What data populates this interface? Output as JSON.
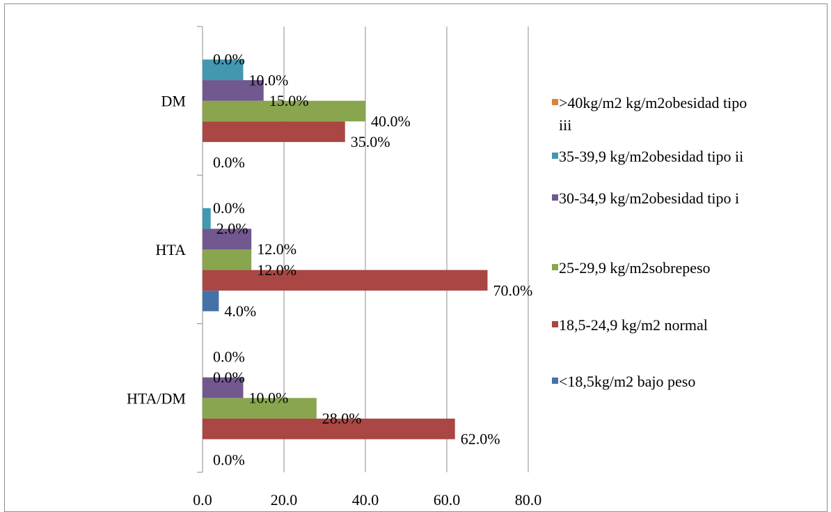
{
  "chart_data": {
    "type": "bar",
    "orientation": "horizontal",
    "categories": [
      "DM",
      "HTA",
      "HTA/DM"
    ],
    "series": [
      {
        "name": "<18,5kg/m2 bajo peso",
        "color": "#4472A8",
        "values": [
          0.0,
          4.0,
          0.0
        ],
        "labels": [
          "0.0%",
          "4.0%",
          "0.0%"
        ]
      },
      {
        "name": "18,5-24,9 kg/m2 normal",
        "color": "#AA4643",
        "values": [
          35.0,
          70.0,
          62.0
        ],
        "labels": [
          "35.0%",
          "70.0%",
          "62.0%"
        ]
      },
      {
        "name": "25-29,9 kg/m2sobrepeso",
        "color": "#89A54E",
        "values": [
          40.0,
          12.0,
          28.0
        ],
        "labels": [
          "40.0%",
          "12.0%",
          "28.0%"
        ]
      },
      {
        "name": "30-34,9 kg/m2obesidad tipo i",
        "color": "#71588F",
        "values": [
          15.0,
          12.0,
          10.0
        ],
        "labels": [
          "15.0%",
          "12.0%",
          "10.0%"
        ]
      },
      {
        "name": "35-39,9 kg/m2obesidad tipo ii",
        "color": "#4198AF",
        "values": [
          10.0,
          2.0,
          0.0
        ],
        "labels": [
          "10.0%",
          "2.0%",
          "0.0%"
        ]
      },
      {
        "name": ">40kg/m2 kg/m2obesidad tipo iii",
        "color": "#DB843D",
        "values": [
          0.0,
          0.0,
          0.0
        ],
        "labels": [
          "0.0%",
          "0.0%",
          "0.0%"
        ]
      }
    ],
    "xlim": [
      0,
      80
    ],
    "x_ticks": [
      "0.0",
      "20.0",
      "40.0",
      "60.0",
      "80.0"
    ],
    "gridlines": true,
    "legend_position": "right"
  }
}
